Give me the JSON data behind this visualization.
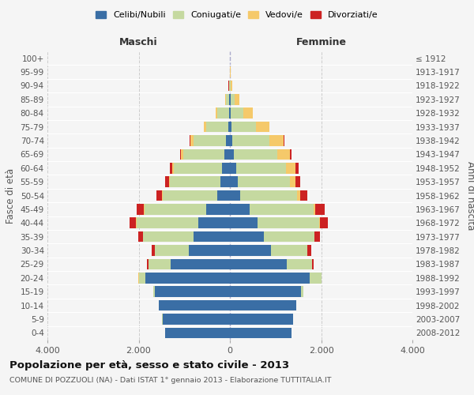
{
  "age_groups": [
    "0-4",
    "5-9",
    "10-14",
    "15-19",
    "20-24",
    "25-29",
    "30-34",
    "35-39",
    "40-44",
    "45-49",
    "50-54",
    "55-59",
    "60-64",
    "65-69",
    "70-74",
    "75-79",
    "80-84",
    "85-89",
    "90-94",
    "95-99",
    "100+"
  ],
  "birth_years": [
    "2008-2012",
    "2003-2007",
    "1998-2002",
    "1993-1997",
    "1988-1992",
    "1983-1987",
    "1978-1982",
    "1973-1977",
    "1968-1972",
    "1963-1967",
    "1958-1962",
    "1953-1957",
    "1948-1952",
    "1943-1947",
    "1938-1942",
    "1933-1937",
    "1928-1932",
    "1923-1927",
    "1918-1922",
    "1913-1917",
    "≤ 1912"
  ],
  "male": {
    "celibe": [
      1420,
      1480,
      1550,
      1650,
      1850,
      1300,
      900,
      800,
      700,
      520,
      280,
      210,
      180,
      120,
      80,
      40,
      20,
      10,
      5,
      2,
      2
    ],
    "coniugato": [
      2,
      2,
      5,
      30,
      150,
      480,
      750,
      1100,
      1350,
      1350,
      1200,
      1100,
      1050,
      900,
      720,
      480,
      250,
      80,
      15,
      3,
      2
    ],
    "vedovo": [
      0,
      0,
      0,
      1,
      2,
      2,
      3,
      5,
      5,
      10,
      15,
      25,
      40,
      50,
      60,
      50,
      40,
      20,
      5,
      2,
      1
    ],
    "divorziato": [
      0,
      0,
      1,
      3,
      10,
      30,
      60,
      100,
      140,
      160,
      120,
      80,
      50,
      25,
      15,
      8,
      5,
      2,
      1,
      0,
      0
    ]
  },
  "female": {
    "nubile": [
      1350,
      1380,
      1450,
      1550,
      1750,
      1250,
      900,
      750,
      600,
      430,
      220,
      170,
      130,
      90,
      60,
      30,
      20,
      10,
      5,
      2,
      2
    ],
    "coniugata": [
      3,
      5,
      10,
      60,
      250,
      550,
      800,
      1100,
      1350,
      1400,
      1250,
      1150,
      1100,
      950,
      800,
      550,
      280,
      100,
      20,
      5,
      3
    ],
    "vedova": [
      0,
      0,
      1,
      2,
      3,
      4,
      5,
      10,
      20,
      40,
      70,
      120,
      200,
      280,
      320,
      280,
      200,
      100,
      20,
      5,
      3
    ],
    "divorziata": [
      0,
      0,
      1,
      3,
      10,
      30,
      70,
      120,
      170,
      200,
      160,
      100,
      70,
      35,
      20,
      12,
      8,
      3,
      1,
      0,
      0
    ]
  },
  "colors": {
    "celibe": "#3a6ea5",
    "coniugato": "#c5d9a0",
    "vedovo": "#f5c96a",
    "divorziato": "#cc2222"
  },
  "title": "Popolazione per età, sesso e stato civile - 2013",
  "subtitle": "COMUNE DI POZZUOLI (NA) - Dati ISTAT 1° gennaio 2013 - Elaborazione TUTTITALIA.IT",
  "xlabel_left": "Maschi",
  "xlabel_right": "Femmine",
  "ylabel_left": "Fasce di età",
  "ylabel_right": "Anni di nascita",
  "xlim": 4000,
  "xticklabels": [
    "4.000",
    "2.000",
    "0",
    "2.000",
    "4.000"
  ],
  "legend_labels": [
    "Celibi/Nubili",
    "Coniugati/e",
    "Vedovi/e",
    "Divorziati/e"
  ],
  "bg_color": "#f5f5f5",
  "grid_color": "#cccccc"
}
